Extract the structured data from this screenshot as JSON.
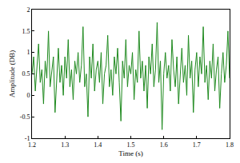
{
  "chart_data": {
    "type": "line",
    "x_label": "Time (s)",
    "y_label": "Amplitude (DB)",
    "color": "#1f8a1f",
    "xlim": [
      1.2,
      1.8
    ],
    "xticks": [
      1.2,
      1.3,
      1.4,
      1.5,
      1.6,
      1.7,
      1.8
    ],
    "ylim": [
      -1,
      2
    ],
    "yticks": [
      -1,
      -0.5,
      0,
      0.5,
      1,
      1.5,
      2
    ],
    "grid": false,
    "x": [
      1.2,
      1.205,
      1.21,
      1.215,
      1.22,
      1.225,
      1.23,
      1.235,
      1.24,
      1.245,
      1.25,
      1.255,
      1.26,
      1.265,
      1.27,
      1.275,
      1.28,
      1.285,
      1.29,
      1.295,
      1.3,
      1.305,
      1.31,
      1.315,
      1.32,
      1.325,
      1.33,
      1.335,
      1.34,
      1.345,
      1.35,
      1.355,
      1.36,
      1.365,
      1.37,
      1.375,
      1.38,
      1.385,
      1.39,
      1.395,
      1.4,
      1.405,
      1.41,
      1.415,
      1.42,
      1.425,
      1.43,
      1.435,
      1.44,
      1.445,
      1.45,
      1.455,
      1.46,
      1.465,
      1.47,
      1.475,
      1.48,
      1.485,
      1.49,
      1.495,
      1.5,
      1.505,
      1.51,
      1.515,
      1.52,
      1.525,
      1.53,
      1.535,
      1.54,
      1.545,
      1.55,
      1.555,
      1.56,
      1.565,
      1.57,
      1.575,
      1.58,
      1.585,
      1.59,
      1.595,
      1.6,
      1.605,
      1.61,
      1.615,
      1.62,
      1.625,
      1.63,
      1.635,
      1.64,
      1.645,
      1.65,
      1.655,
      1.66,
      1.665,
      1.67,
      1.675,
      1.68,
      1.685,
      1.69,
      1.695,
      1.7,
      1.705,
      1.71,
      1.715,
      1.72,
      1.725,
      1.73,
      1.735,
      1.74,
      1.745,
      1.75,
      1.755,
      1.76,
      1.765,
      1.77,
      1.775,
      1.78,
      1.785,
      1.79,
      1.795,
      1.8
    ],
    "values": [
      0.5,
      0.9,
      0.1,
      0.7,
      1.2,
      0.3,
      0.6,
      -0.2,
      0.8,
      0.4,
      1.5,
      0.2,
      0.6,
      0.9,
      -0.4,
      0.5,
      1.1,
      0.3,
      0.7,
      0.0,
      0.9,
      0.4,
      1.3,
      0.2,
      0.6,
      -0.1,
      0.8,
      0.5,
      1.0,
      0.3,
      0.7,
      1.6,
      0.2,
      0.5,
      -0.5,
      0.9,
      0.4,
      1.2,
      0.1,
      0.6,
      0.8,
      0.3,
      1.0,
      -0.2,
      0.5,
      0.7,
      1.4,
      0.2,
      0.6,
      0.0,
      0.9,
      0.5,
      1.1,
      0.3,
      -0.6,
      0.8,
      0.4,
      1.3,
      0.2,
      0.7,
      0.5,
      1.0,
      -0.1,
      0.6,
      0.3,
      1.5,
      0.4,
      0.8,
      0.1,
      0.7,
      -0.3,
      0.9,
      0.5,
      1.2,
      0.2,
      0.6,
      1.7,
      0.3,
      0.8,
      -0.8,
      0.5,
      1.0,
      0.4,
      0.7,
      0.1,
      1.3,
      0.6,
      0.2,
      0.9,
      -0.2,
      0.5,
      1.1,
      0.3,
      0.7,
      0.0,
      1.4,
      0.4,
      0.8,
      -0.4,
      0.6,
      1.0,
      0.2,
      0.9,
      0.5,
      1.6,
      0.3,
      0.7,
      -0.1,
      0.8,
      0.4,
      1.2,
      0.1,
      0.6,
      0.9,
      -0.3,
      0.5,
      1.0,
      0.3,
      0.7,
      1.5,
      0.4
    ]
  }
}
